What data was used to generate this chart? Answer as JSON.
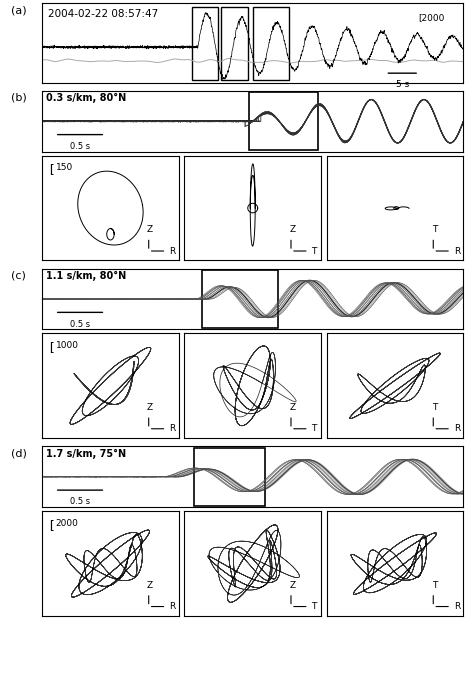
{
  "fig_width": 4.68,
  "fig_height": 6.89,
  "panel_a": {
    "label": "(a)",
    "title": "2004-02-22 08:57:47",
    "scale_label": "2000",
    "scalebar": "5 s"
  },
  "panel_b": {
    "label": "(b)",
    "info": "0.3 s/km, 80°N",
    "scalebar": "0.5 s",
    "scale_value": "150"
  },
  "panel_c": {
    "label": "(c)",
    "info": "1.1 s/km, 80°N",
    "scalebar": "0.5 s",
    "scale_value": "1000"
  },
  "panel_d": {
    "label": "(d)",
    "info": "1.7 s/km, 75°N",
    "scalebar": "0.5 s",
    "scale_value": "2000"
  }
}
